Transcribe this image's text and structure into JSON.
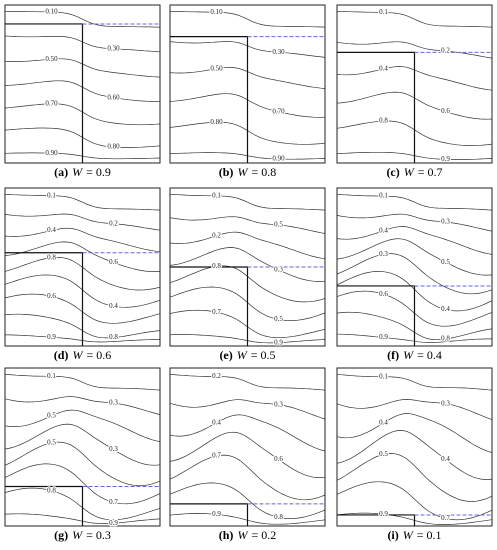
{
  "panels": [
    {
      "letter": "(a)",
      "variable": "W",
      "value_text": "= 0.9",
      "contour_labels": [
        "0.10",
        "0.30",
        "0.50",
        "0.60",
        "0.70",
        "0.80",
        "0.90"
      ]
    },
    {
      "letter": "(b)",
      "variable": "W",
      "value_text": "= 0.8",
      "contour_labels": [
        "0.10",
        "0.30",
        "0.50",
        "0.70",
        "0.80",
        "0.90"
      ]
    },
    {
      "letter": "(c)",
      "variable": "W",
      "value_text": "= 0.7",
      "contour_labels": [
        "0.1",
        "0.2",
        "0.4",
        "0.6",
        "0.8",
        "0.9"
      ]
    },
    {
      "letter": "(d)",
      "variable": "W",
      "value_text": "= 0.6",
      "contour_labels": [
        "0.1",
        "0.2",
        "0.4",
        "0.6",
        "0.8",
        "0.4",
        "0.6",
        "0.8",
        "0.9"
      ]
    },
    {
      "letter": "(e)",
      "variable": "W",
      "value_text": "= 0.5",
      "contour_labels": [
        "0.1",
        "0.5",
        "0.2",
        "0.3",
        "0.8",
        "0.5",
        "0.7",
        "0.9"
      ]
    },
    {
      "letter": "(f)",
      "variable": "W",
      "value_text": "= 0.4",
      "contour_labels": [
        "0.1",
        "0.3",
        "0.4",
        "0.5",
        "0.3",
        "0.4",
        "0.6",
        "0.8",
        "0.9"
      ]
    },
    {
      "letter": "(g)",
      "variable": "W",
      "value_text": "= 0.3",
      "contour_labels": [
        "0.1",
        "0.3",
        "0.5",
        "0.3",
        "0.5",
        "0.7",
        "0.8",
        "0.9"
      ]
    },
    {
      "letter": "(h)",
      "variable": "W",
      "value_text": "= 0.2",
      "contour_labels": [
        "0.2",
        "0.3",
        "0.4",
        "0.6",
        "0.7",
        "0.8",
        "0.9"
      ]
    },
    {
      "letter": "(i)",
      "variable": "W",
      "value_text": "= 0.1",
      "contour_labels": [
        "0.1",
        "0.3",
        "0.4",
        "0.4",
        "0.5",
        "0.7",
        "0.9"
      ]
    }
  ]
}
